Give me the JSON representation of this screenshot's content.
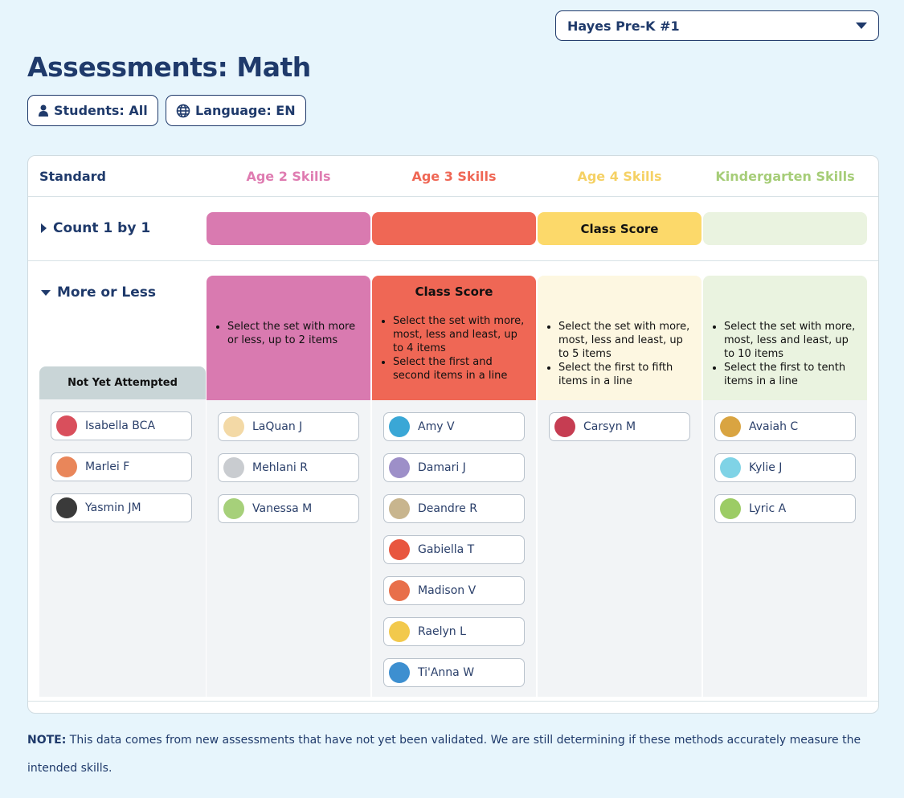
{
  "school_select": "Hayes Pre-K #1",
  "title": "Assessments: Math",
  "filters": {
    "students": "Students: All",
    "language": "Language: EN"
  },
  "table": {
    "headers": [
      "Standard",
      "Age 2 Skills",
      "Age 3 Skills",
      "Age 4 Skills",
      "Kindergarten Skills"
    ],
    "colors": {
      "age2": "#d97ab0",
      "age3": "#ef6755",
      "age4": "#fcd96a",
      "kinder": "#eaf3e0"
    },
    "rows": [
      {
        "label": "Count 1 by 1",
        "class_score": "Class Score"
      },
      {
        "label": "More or Less",
        "class_score": "Class Score",
        "not_yet_attempted": "Not Yet Attempted",
        "skills": {
          "age2": [
            "Select the set with more or less, up to 2 items"
          ],
          "age3": [
            "Select the set with more, most, less and least, up to 4 items",
            "Select the first and second items in a line"
          ],
          "age4": [
            "Select the set with more, most, less and least, up to 5 items",
            "Select the first to fifth items in a line"
          ],
          "kinder": [
            "Select the set with more, most, less and least, up to 10 items",
            "Select the first to tenth items in a line"
          ]
        },
        "students": {
          "not_yet": [
            "Isabella BCA",
            "Marlei F",
            "Yasmin JM"
          ],
          "age2": [
            "LaQuan J",
            "Mehlani R",
            "Vanessa M"
          ],
          "age3": [
            "Amy V",
            "Damari J",
            "Deandre R",
            "Gabiella T",
            "Madison V",
            "Raelyn L",
            "Ti'Anna W"
          ],
          "age4": [
            "Carsyn M"
          ],
          "kinder": [
            "Avaiah C",
            "Kylie J",
            "Lyric A"
          ]
        }
      }
    ]
  },
  "note": {
    "label": "NOTE:",
    "text": " This data comes from new assessments that have not yet been validated. We are still determining if these methods accurately measure the intended skills."
  }
}
